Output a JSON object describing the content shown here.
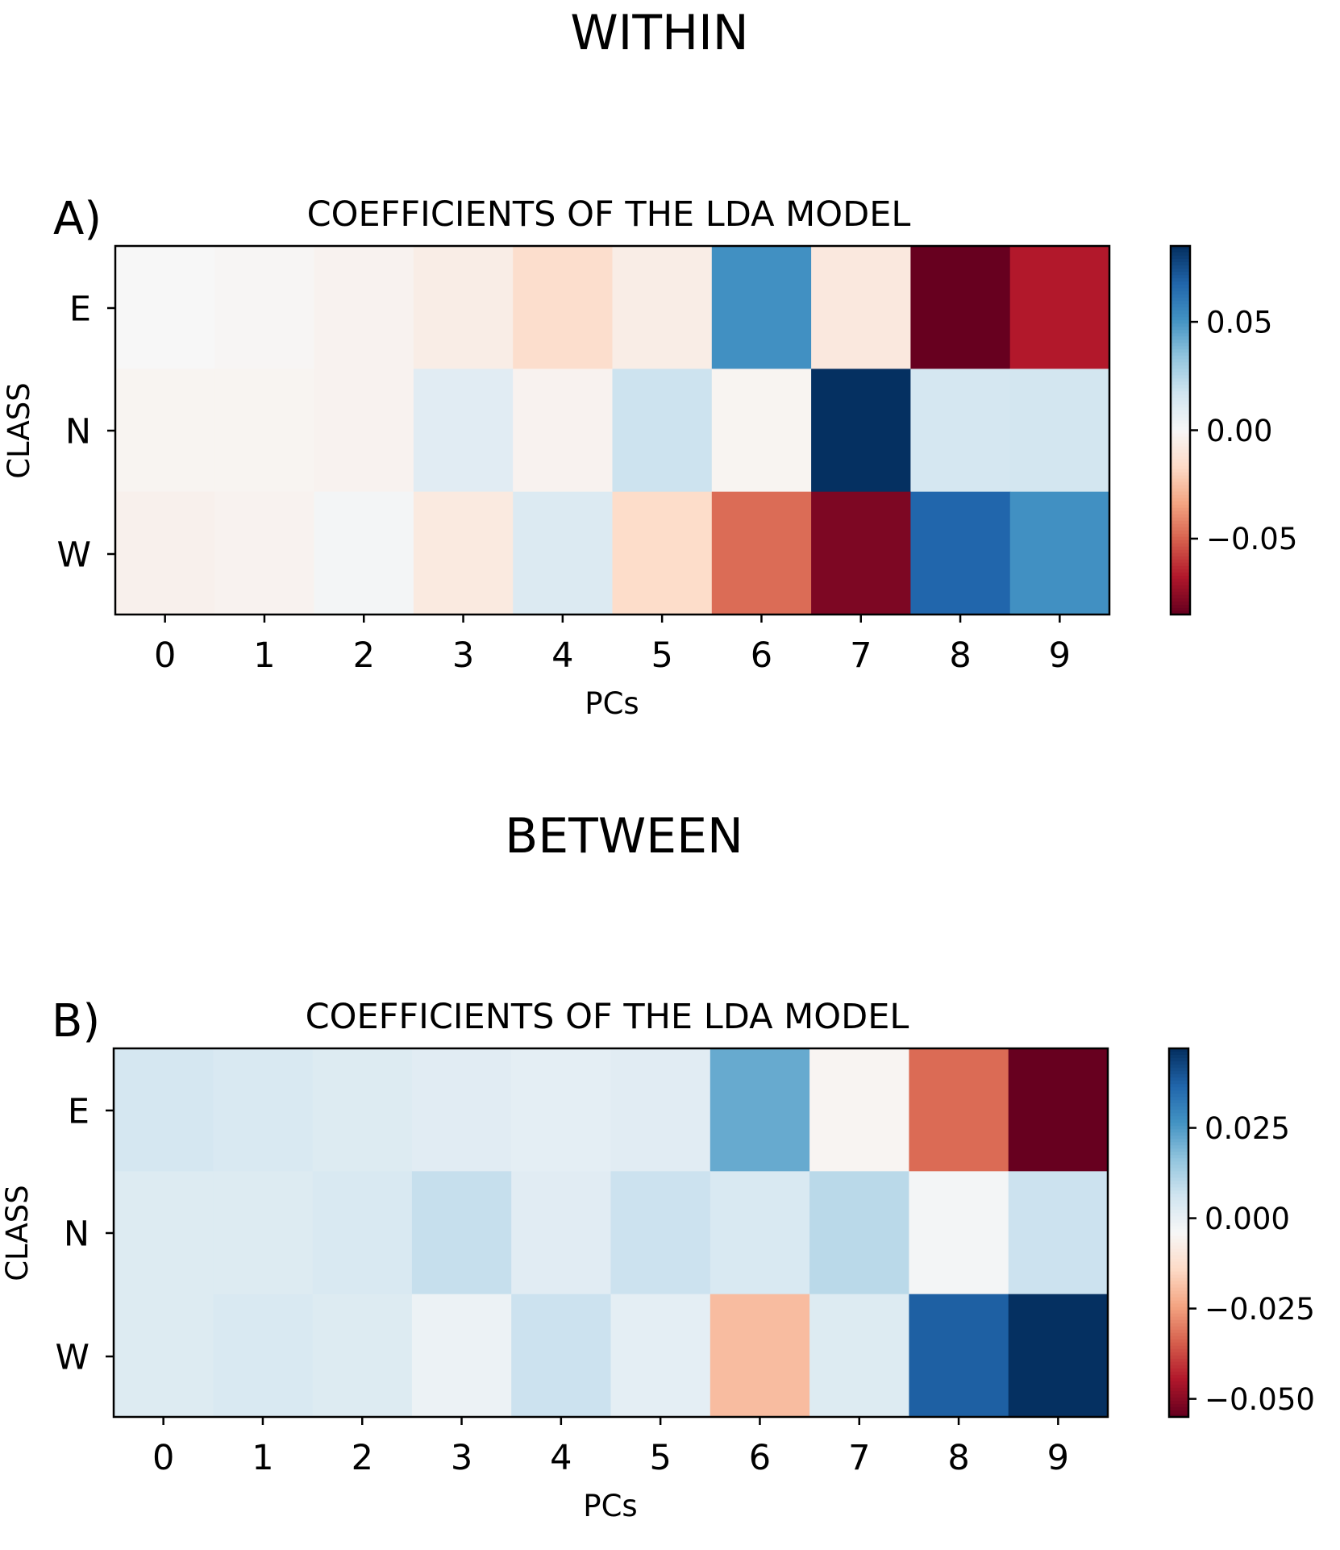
{
  "panels": [
    {
      "suptitle": "WITHIN",
      "panel_label": "A)",
      "colorbar_ticks": [
        "0.05",
        "0.00",
        "−0.05"
      ]
    },
    {
      "suptitle": "BETWEEN",
      "panel_label": "B)",
      "colorbar_ticks": [
        "0.025",
        "0.000",
        "−0.025",
        "−0.050"
      ]
    }
  ],
  "chart_data": [
    {
      "type": "heatmap",
      "title": "COEFFICIENTS OF THE LDA MODEL",
      "xlabel": "PCs",
      "ylabel": "CLASS",
      "x": [
        "0",
        "1",
        "2",
        "3",
        "4",
        "5",
        "6",
        "7",
        "8",
        "9"
      ],
      "y": [
        "E",
        "N",
        "W"
      ],
      "colormap": "RdBu",
      "vmin": -0.085,
      "vmax": 0.085,
      "colorbar_tick_values": [
        0.05,
        0.0,
        -0.05
      ],
      "values": [
        [
          0.0,
          -0.001,
          -0.003,
          -0.006,
          -0.015,
          -0.006,
          0.052,
          -0.009,
          -0.085,
          -0.068
        ],
        [
          -0.002,
          -0.002,
          -0.003,
          0.01,
          -0.003,
          0.018,
          -0.002,
          0.085,
          0.015,
          0.016
        ],
        [
          -0.004,
          -0.003,
          0.002,
          -0.008,
          0.012,
          -0.016,
          -0.048,
          -0.08,
          0.068,
          0.052
        ]
      ]
    },
    {
      "type": "heatmap",
      "title": "COEFFICIENTS OF THE LDA MODEL",
      "xlabel": "PCs",
      "ylabel": "CLASS",
      "x": [
        "0",
        "1",
        "2",
        "3",
        "4",
        "5",
        "6",
        "7",
        "8",
        "9"
      ],
      "y": [
        "E",
        "N",
        "W"
      ],
      "colormap": "RdBu",
      "vmin": -0.055,
      "vmax": 0.047,
      "colorbar_tick_values": [
        0.025,
        0.0,
        -0.025,
        -0.05
      ],
      "values": [
        [
          0.005,
          0.004,
          0.003,
          0.002,
          0.001,
          0.002,
          0.022,
          -0.005,
          -0.033,
          -0.055
        ],
        [
          0.003,
          0.003,
          0.004,
          0.008,
          0.002,
          0.007,
          0.004,
          0.01,
          -0.003,
          0.007
        ],
        [
          0.003,
          0.004,
          0.003,
          -0.001,
          0.007,
          0.001,
          -0.02,
          0.003,
          0.038,
          0.047
        ]
      ]
    }
  ]
}
